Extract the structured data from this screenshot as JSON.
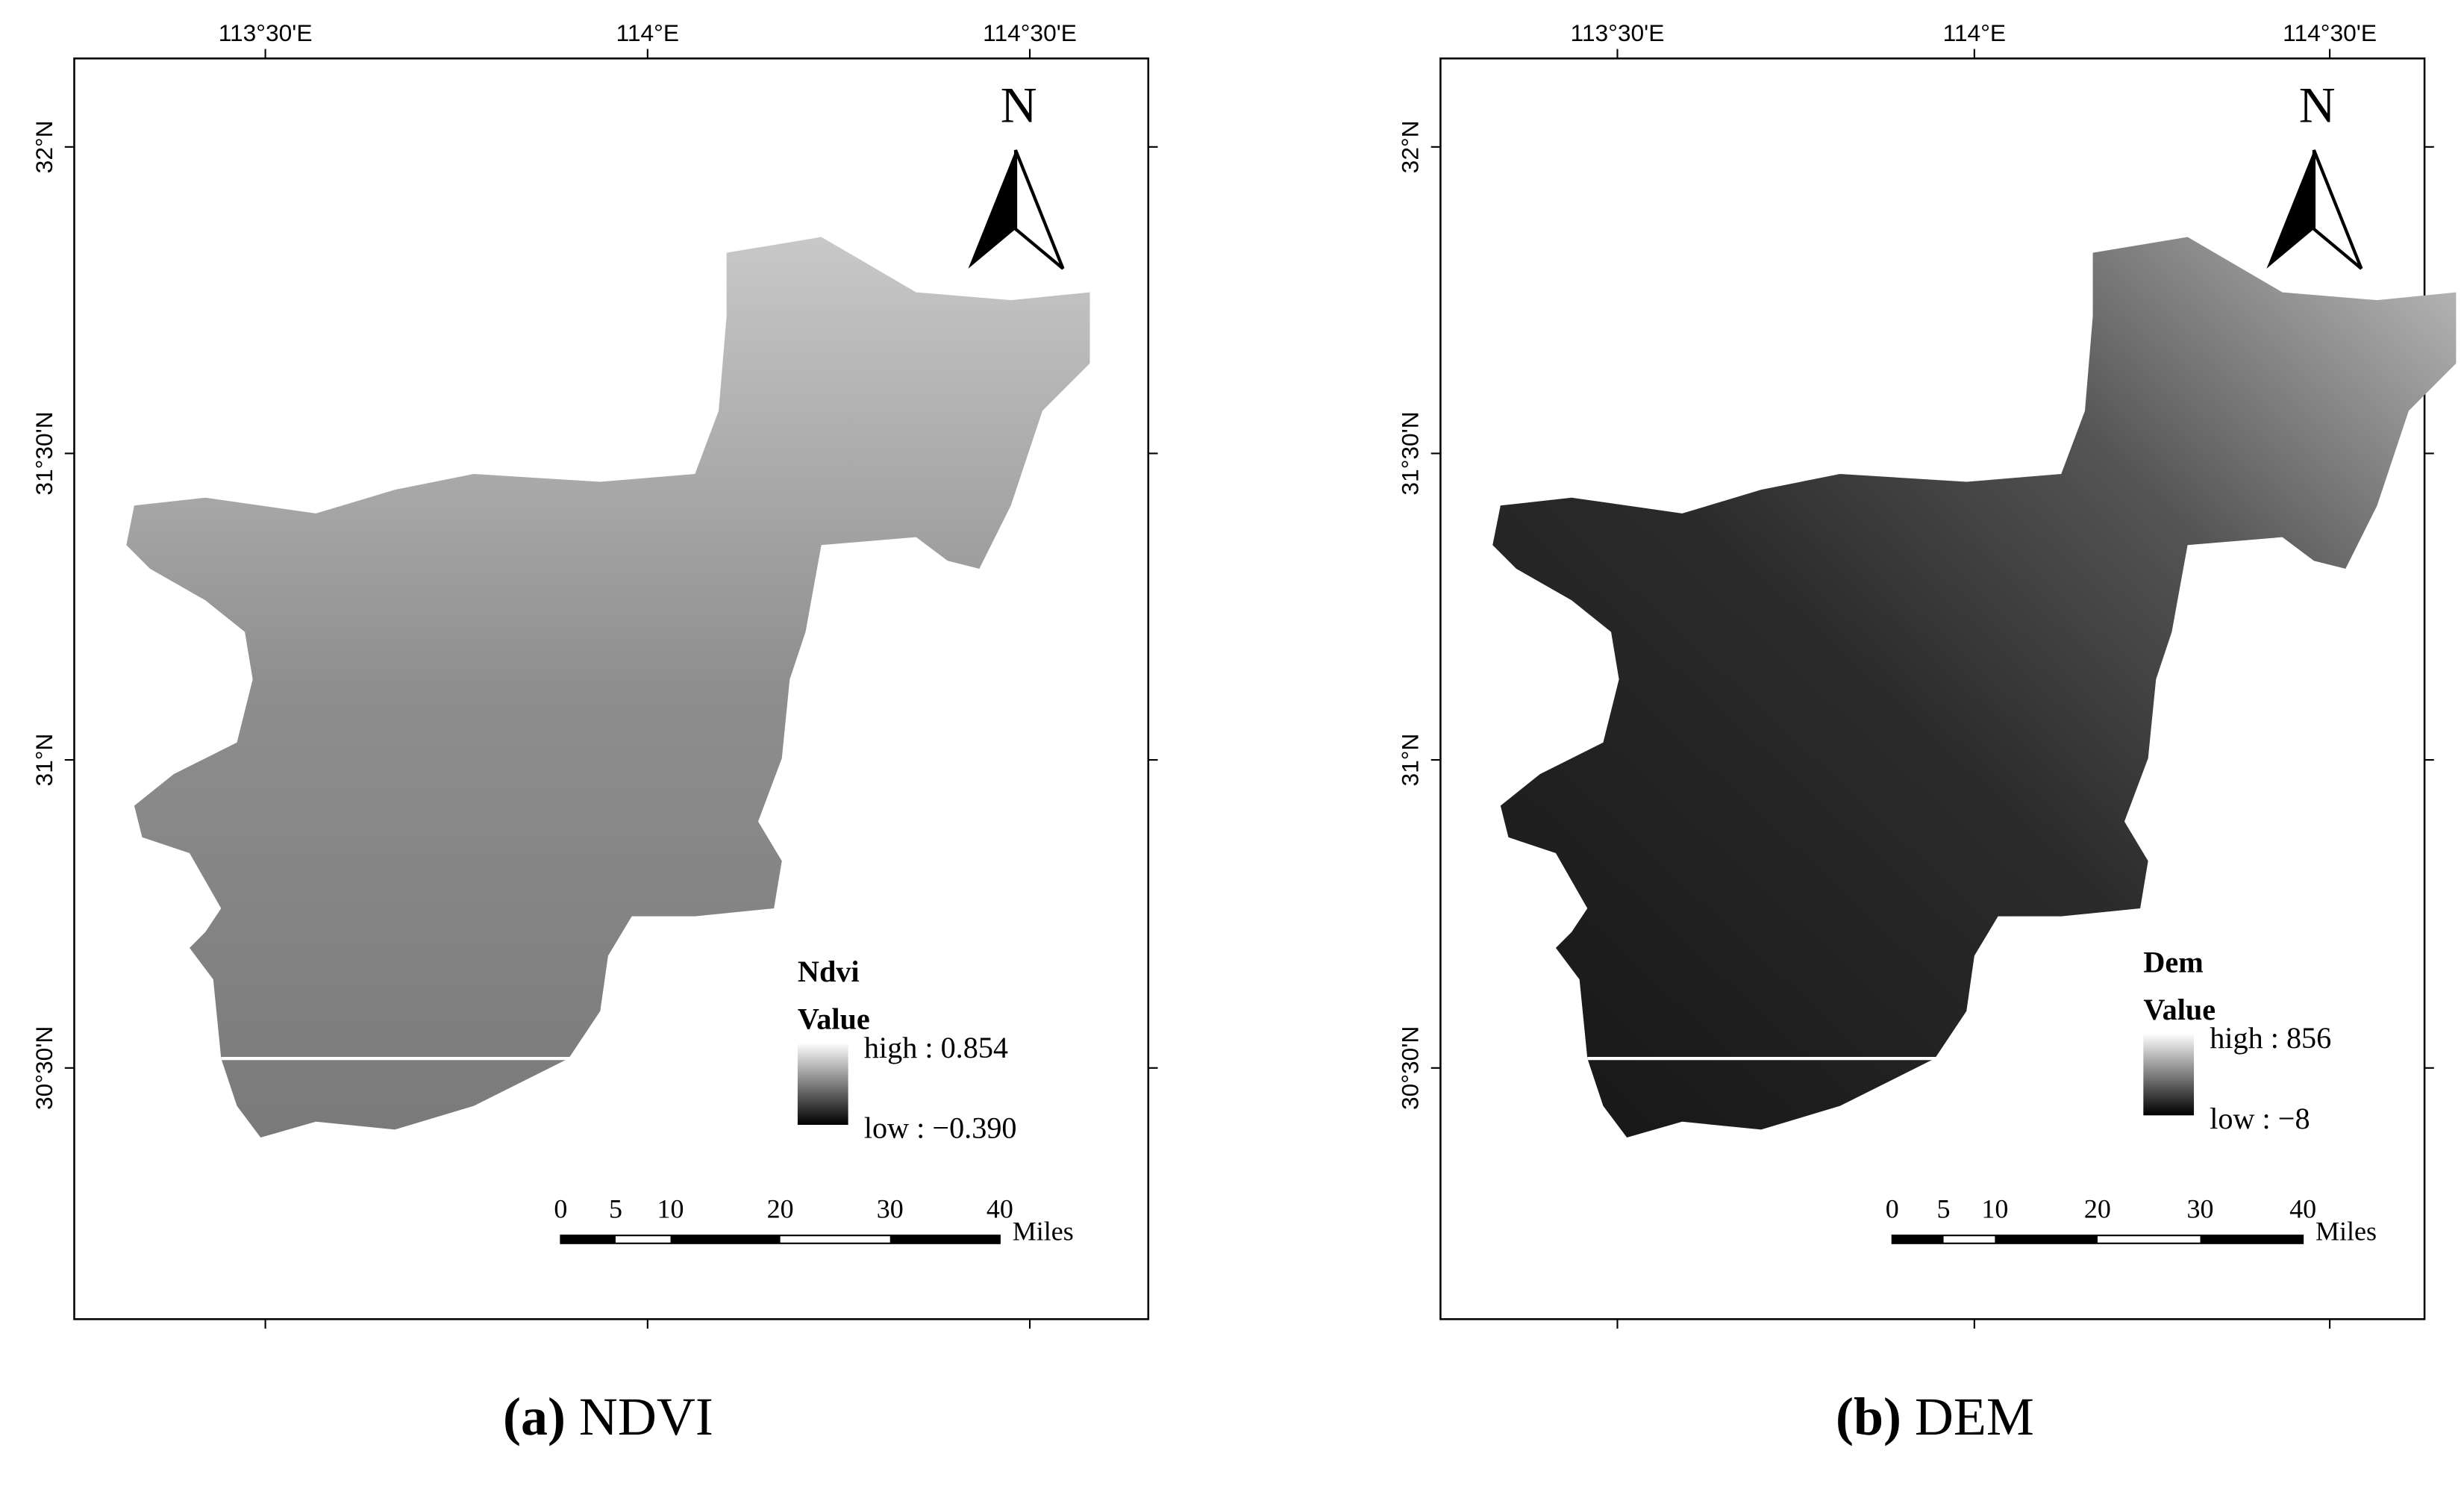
{
  "panels": [
    {
      "lon_ticks": [
        "113°30'E",
        "114°E",
        "114°30'E"
      ],
      "lat_ticks": [
        "32°N",
        "31°30'N",
        "31°N",
        "30°30'N"
      ],
      "north": "N",
      "legend": {
        "title": "Ndvi",
        "subtitle": "Value",
        "high": "high : 0.854",
        "low": "low : −0.390"
      },
      "scale": {
        "ticks": [
          0,
          5,
          10,
          20,
          30,
          40
        ],
        "unit": "Miles"
      },
      "caption": {
        "label": "(a)",
        "text": "NDVI"
      }
    },
    {
      "lon_ticks": [
        "113°30'E",
        "114°E",
        "114°30'E"
      ],
      "lat_ticks": [
        "32°N",
        "31°30'N",
        "31°N",
        "30°30'N"
      ],
      "north": "N",
      "legend": {
        "title": "Dem",
        "subtitle": "Value",
        "high": "high : 856",
        "low": "low : −8"
      },
      "scale": {
        "ticks": [
          0,
          5,
          10,
          20,
          30,
          40
        ],
        "unit": "Miles"
      },
      "caption": {
        "label": "(b)",
        "text": "DEM"
      }
    }
  ]
}
